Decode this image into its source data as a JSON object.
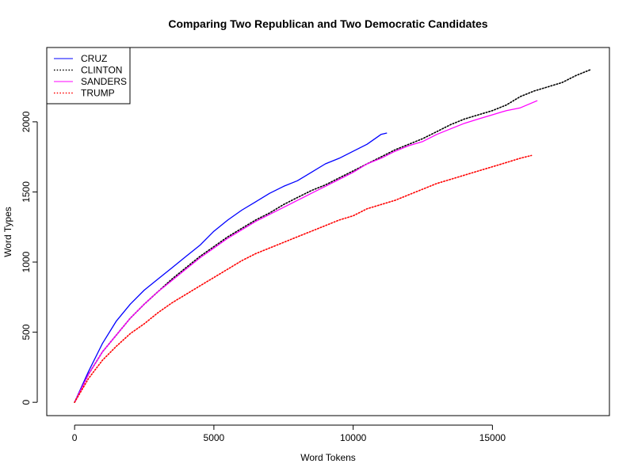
{
  "chart_data": {
    "type": "line",
    "title": "Comparing Two Republican and Two Democratic Candidates",
    "xlabel": "Word Tokens",
    "ylabel": "Word Types",
    "xlim": [
      -1000,
      19200
    ],
    "ylim": [
      -95,
      2530
    ],
    "x_ticks": [
      0,
      5000,
      10000,
      15000
    ],
    "x_tick_labels": [
      "0",
      "5000",
      "10000",
      "15000"
    ],
    "y_ticks": [
      0,
      500,
      1000,
      1500,
      2000
    ],
    "y_tick_labels": [
      "0",
      "500",
      "1000",
      "1500",
      "2000"
    ],
    "grid": false,
    "legend_position": "top-left",
    "series": [
      {
        "name": "CRUZ",
        "color": "#0000ff",
        "dash": "solid",
        "points": [
          [
            0,
            0
          ],
          [
            500,
            220
          ],
          [
            1000,
            420
          ],
          [
            1500,
            580
          ],
          [
            2000,
            700
          ],
          [
            2500,
            800
          ],
          [
            3000,
            880
          ],
          [
            3500,
            960
          ],
          [
            4000,
            1040
          ],
          [
            4500,
            1120
          ],
          [
            5000,
            1220
          ],
          [
            5500,
            1300
          ],
          [
            6000,
            1370
          ],
          [
            6500,
            1430
          ],
          [
            7000,
            1490
          ],
          [
            7500,
            1540
          ],
          [
            8000,
            1580
          ],
          [
            8500,
            1640
          ],
          [
            9000,
            1700
          ],
          [
            9500,
            1740
          ],
          [
            10000,
            1790
          ],
          [
            10500,
            1840
          ],
          [
            11000,
            1910
          ],
          [
            11200,
            1920
          ]
        ]
      },
      {
        "name": "CLINTON",
        "color": "#000000",
        "dash": "dotted",
        "points": [
          [
            0,
            0
          ],
          [
            500,
            200
          ],
          [
            1000,
            360
          ],
          [
            1500,
            480
          ],
          [
            2000,
            600
          ],
          [
            2500,
            700
          ],
          [
            3000,
            790
          ],
          [
            3500,
            880
          ],
          [
            4000,
            960
          ],
          [
            4500,
            1040
          ],
          [
            5000,
            1110
          ],
          [
            5500,
            1180
          ],
          [
            6000,
            1240
          ],
          [
            6500,
            1300
          ],
          [
            7000,
            1350
          ],
          [
            7500,
            1410
          ],
          [
            8000,
            1460
          ],
          [
            8500,
            1510
          ],
          [
            9000,
            1550
          ],
          [
            9500,
            1600
          ],
          [
            10000,
            1650
          ],
          [
            10500,
            1700
          ],
          [
            11000,
            1750
          ],
          [
            11500,
            1800
          ],
          [
            12000,
            1840
          ],
          [
            12500,
            1880
          ],
          [
            13000,
            1930
          ],
          [
            13500,
            1980
          ],
          [
            14000,
            2020
          ],
          [
            14500,
            2050
          ],
          [
            15000,
            2080
          ],
          [
            15500,
            2120
          ],
          [
            16000,
            2180
          ],
          [
            16500,
            2220
          ],
          [
            17000,
            2250
          ],
          [
            17500,
            2280
          ],
          [
            18000,
            2330
          ],
          [
            18500,
            2370
          ]
        ]
      },
      {
        "name": "SANDERS",
        "color": "#ff00ff",
        "dash": "solid",
        "points": [
          [
            0,
            0
          ],
          [
            500,
            200
          ],
          [
            1000,
            360
          ],
          [
            1500,
            480
          ],
          [
            2000,
            600
          ],
          [
            2500,
            700
          ],
          [
            3000,
            790
          ],
          [
            3500,
            870
          ],
          [
            4000,
            950
          ],
          [
            4500,
            1030
          ],
          [
            5000,
            1100
          ],
          [
            5500,
            1170
          ],
          [
            6000,
            1230
          ],
          [
            6500,
            1290
          ],
          [
            7000,
            1340
          ],
          [
            7500,
            1390
          ],
          [
            8000,
            1440
          ],
          [
            8500,
            1490
          ],
          [
            9000,
            1540
          ],
          [
            9500,
            1590
          ],
          [
            10000,
            1640
          ],
          [
            10500,
            1700
          ],
          [
            11000,
            1740
          ],
          [
            11500,
            1790
          ],
          [
            12000,
            1830
          ],
          [
            12500,
            1860
          ],
          [
            13000,
            1910
          ],
          [
            13500,
            1950
          ],
          [
            14000,
            1990
          ],
          [
            14500,
            2020
          ],
          [
            15000,
            2050
          ],
          [
            15500,
            2080
          ],
          [
            16000,
            2100
          ],
          [
            16600,
            2150
          ]
        ]
      },
      {
        "name": "TRUMP",
        "color": "#ff0000",
        "dash": "dotted",
        "points": [
          [
            0,
            0
          ],
          [
            500,
            170
          ],
          [
            1000,
            300
          ],
          [
            1500,
            400
          ],
          [
            2000,
            490
          ],
          [
            2500,
            560
          ],
          [
            3000,
            640
          ],
          [
            3500,
            710
          ],
          [
            4000,
            770
          ],
          [
            4500,
            830
          ],
          [
            5000,
            890
          ],
          [
            5500,
            950
          ],
          [
            6000,
            1010
          ],
          [
            6500,
            1060
          ],
          [
            7000,
            1100
          ],
          [
            7500,
            1140
          ],
          [
            8000,
            1180
          ],
          [
            8500,
            1220
          ],
          [
            9000,
            1260
          ],
          [
            9500,
            1300
          ],
          [
            10000,
            1330
          ],
          [
            10500,
            1380
          ],
          [
            11000,
            1410
          ],
          [
            11500,
            1440
          ],
          [
            12000,
            1480
          ],
          [
            12500,
            1520
          ],
          [
            13000,
            1560
          ],
          [
            13500,
            1590
          ],
          [
            14000,
            1620
          ],
          [
            14500,
            1650
          ],
          [
            15000,
            1680
          ],
          [
            15500,
            1710
          ],
          [
            16000,
            1740
          ],
          [
            16400,
            1760
          ]
        ]
      }
    ]
  }
}
